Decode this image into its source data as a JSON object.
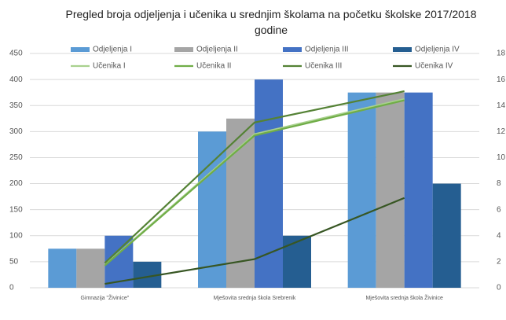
{
  "chart_data": {
    "type": "bar_line",
    "title": "Pregled broja odjeljenja i učenika u srednjim školama na početku školske 2017/2018 godine",
    "categories": [
      "Gimnazija \"Živinice\"",
      "Mješovita srednja škola Srebrenik",
      "Mješovita srednja škola Živinice"
    ],
    "series": [
      {
        "name": "Odjeljenja I",
        "color": "#5b9bd5",
        "values": [
          75,
          300,
          375
        ]
      },
      {
        "name": "Odjeljenja II",
        "color": "#a5a5a5",
        "values": [
          75,
          325,
          375
        ]
      },
      {
        "name": "Odjeljenja III",
        "color": "#4472c4",
        "values": [
          100,
          400,
          375
        ]
      },
      {
        "name": "Odjeljenja IV",
        "color": "#255e91",
        "values": [
          50,
          100,
          200
        ]
      },
      {
        "name": "Učenika I",
        "color": "#a9d18e",
        "axis": "y2",
        "values": [
          1.75,
          11.8,
          14.5
        ]
      },
      {
        "name": "Učenika II",
        "color": "#70ad47",
        "axis": "y2",
        "values": [
          1.7,
          11.7,
          14.4
        ]
      },
      {
        "name": "Učenika III",
        "color": "#548235",
        "axis": "y2",
        "values": [
          1.9,
          12.7,
          15.1
        ]
      },
      {
        "name": "Učenika IV",
        "color": "#375623",
        "axis": "y2",
        "values": [
          0.3,
          2.2,
          6.9
        ]
      }
    ],
    "ylim": [
      0,
      450
    ],
    "yticks": [
      0,
      50,
      100,
      150,
      200,
      250,
      300,
      350,
      400,
      450
    ],
    "y2lim": [
      0,
      18
    ],
    "y2ticks": [
      0,
      2,
      4,
      6,
      8,
      10,
      12,
      14,
      16,
      18
    ],
    "grid": true
  }
}
